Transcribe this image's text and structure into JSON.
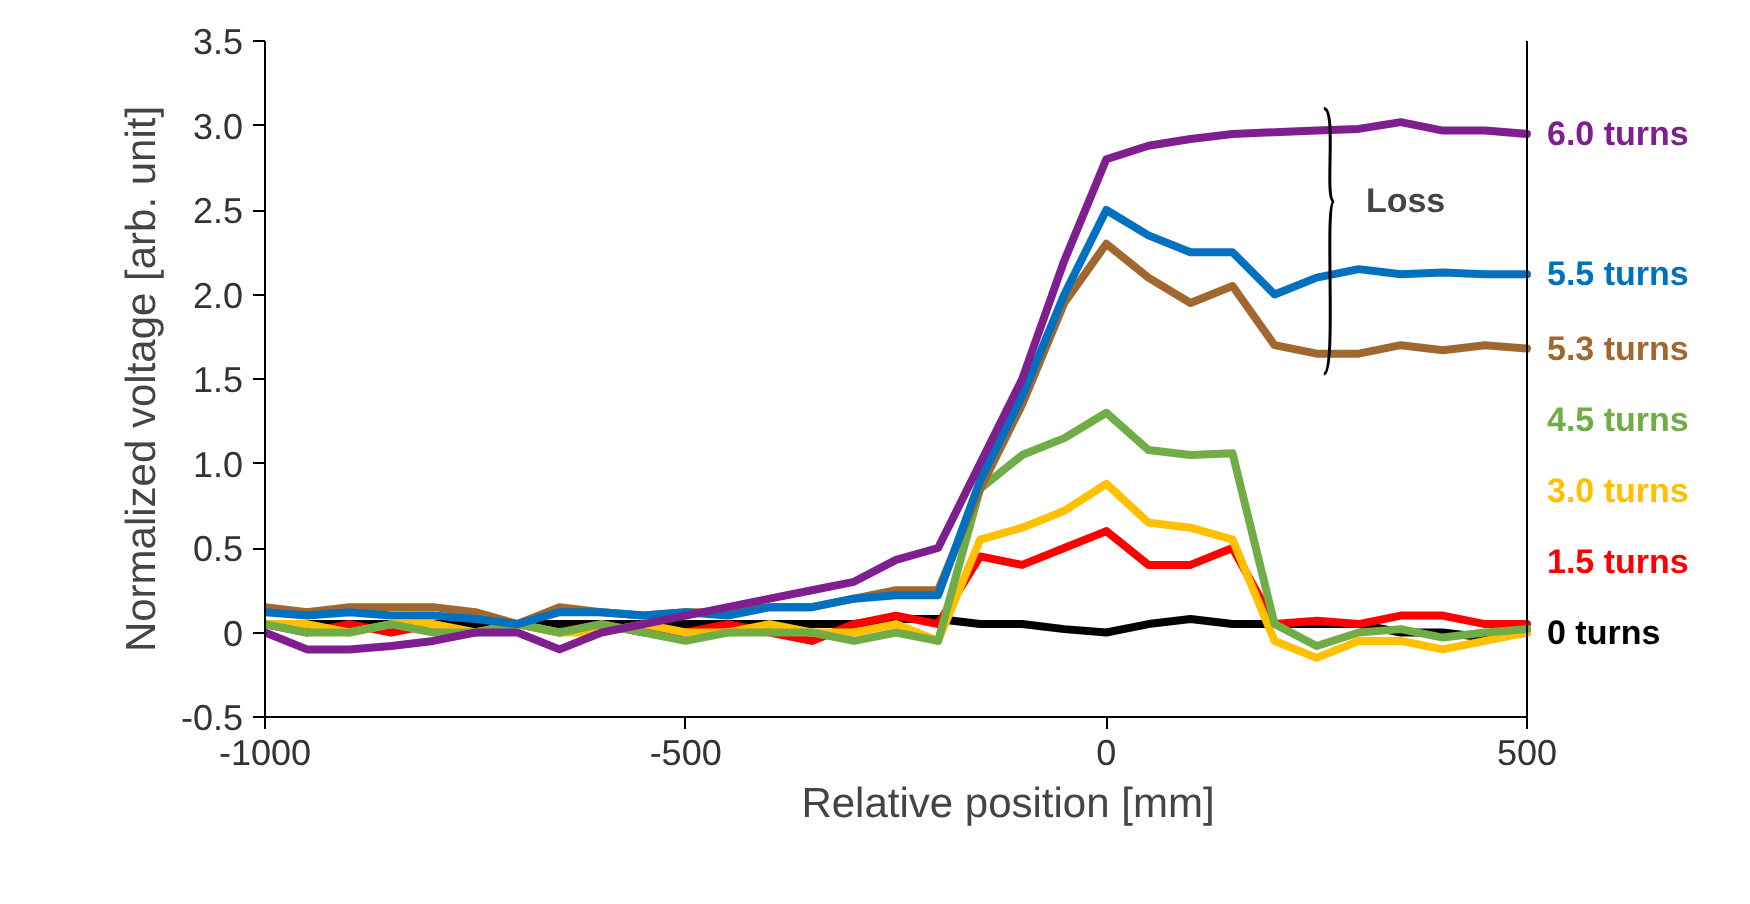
{
  "chart_data": {
    "type": "line",
    "xlabel": "Relative position [mm]",
    "ylabel": "Normalized voltage [arb. unit]",
    "x": [
      -1000,
      -950,
      -900,
      -850,
      -800,
      -750,
      -700,
      -650,
      -600,
      -550,
      -500,
      -450,
      -400,
      -350,
      -300,
      -250,
      -200,
      -150,
      -100,
      -50,
      0,
      50,
      100,
      150,
      200,
      250,
      300,
      350,
      400,
      450,
      500
    ],
    "xlim": [
      -1000,
      500
    ],
    "xticks": [
      -1000,
      -500,
      0,
      500
    ],
    "ylim": [
      -0.5,
      3.5
    ],
    "yticks": [
      {
        "value": -0.5,
        "label": "-0.5"
      },
      0,
      {
        "value": 0.5,
        "label": "0.5"
      },
      {
        "value": 1,
        "label": "1.0"
      },
      {
        "value": 1.5,
        "label": "1.5"
      },
      {
        "value": 2,
        "label": "2.0"
      },
      {
        "value": 2.5,
        "label": "2.5"
      },
      {
        "value": 3,
        "label": "3.0"
      },
      {
        "value": 3.5,
        "label": "3.5"
      }
    ],
    "grid": false,
    "marker": "none",
    "line_style": "solid",
    "annotations": [
      "Loss"
    ],
    "series": [
      {
        "name": "0 turns",
        "color": "#000000",
        "values": [
          0.05,
          0.05,
          0.05,
          0.05,
          0.05,
          0.05,
          0.05,
          0.05,
          0.05,
          0.05,
          0.05,
          0.05,
          0.05,
          0.05,
          0.05,
          0.08,
          0.08,
          0.05,
          0.05,
          0.02,
          0.0,
          0.05,
          0.08,
          0.05,
          0.05,
          0.05,
          0.05,
          0.0,
          0.0,
          -0.03,
          0.0
        ]
      },
      {
        "name": "1.5 turns",
        "color": "#ff0000",
        "values": [
          0.05,
          0.0,
          0.05,
          0.0,
          0.05,
          0.0,
          0.05,
          0.0,
          0.05,
          0.0,
          0.0,
          0.05,
          0.0,
          -0.05,
          0.05,
          0.1,
          0.05,
          0.45,
          0.4,
          0.5,
          0.6,
          0.4,
          0.4,
          0.5,
          0.05,
          0.07,
          0.05,
          0.1,
          0.1,
          0.05,
          0.05
        ]
      },
      {
        "name": "3.0 turns",
        "color": "#ffc000",
        "values": [
          0.05,
          0.05,
          0.0,
          0.05,
          0.05,
          0.0,
          0.05,
          0.0,
          0.0,
          0.05,
          0.0,
          0.0,
          0.05,
          0.0,
          0.0,
          0.05,
          -0.05,
          0.55,
          0.62,
          0.72,
          0.88,
          0.65,
          0.62,
          0.55,
          -0.05,
          -0.15,
          -0.05,
          -0.05,
          -0.1,
          -0.05,
          0.0
        ]
      },
      {
        "name": "4.5 turns",
        "color": "#70ad47",
        "values": [
          0.05,
          0.0,
          0.0,
          0.05,
          0.0,
          0.0,
          0.05,
          0.0,
          0.05,
          0.0,
          -0.05,
          0.0,
          0.0,
          0.0,
          -0.05,
          0.0,
          -0.05,
          0.85,
          1.05,
          1.15,
          1.3,
          1.08,
          1.05,
          1.06,
          0.05,
          -0.08,
          0.0,
          0.02,
          -0.03,
          0.0,
          0.02
        ]
      },
      {
        "name": "5.3 turns",
        "color": "#a0682f",
        "values": [
          0.15,
          0.12,
          0.15,
          0.15,
          0.15,
          0.12,
          0.05,
          0.15,
          0.12,
          0.1,
          0.12,
          0.12,
          0.15,
          0.15,
          0.2,
          0.25,
          0.25,
          0.85,
          1.35,
          1.95,
          2.3,
          2.1,
          1.95,
          2.05,
          1.7,
          1.65,
          1.65,
          1.7,
          1.67,
          1.7,
          1.68
        ]
      },
      {
        "name": "5.5 turns",
        "color": "#0070c0",
        "values": [
          0.12,
          0.1,
          0.12,
          0.1,
          0.1,
          0.08,
          0.05,
          0.12,
          0.12,
          0.1,
          0.12,
          0.1,
          0.15,
          0.15,
          0.2,
          0.22,
          0.22,
          0.9,
          1.4,
          2.0,
          2.5,
          2.35,
          2.25,
          2.25,
          2.0,
          2.1,
          2.15,
          2.12,
          2.13,
          2.12,
          2.12
        ]
      },
      {
        "name": "6.0 turns",
        "color": "#7f1f8f",
        "values": [
          0.0,
          -0.1,
          -0.1,
          -0.08,
          -0.05,
          0.0,
          0.0,
          -0.1,
          0.0,
          0.05,
          0.1,
          0.15,
          0.2,
          0.25,
          0.3,
          0.43,
          0.5,
          1.0,
          1.5,
          2.2,
          2.8,
          2.88,
          2.92,
          2.95,
          2.96,
          2.97,
          2.98,
          3.02,
          2.97,
          2.97,
          2.95
        ]
      }
    ]
  }
}
